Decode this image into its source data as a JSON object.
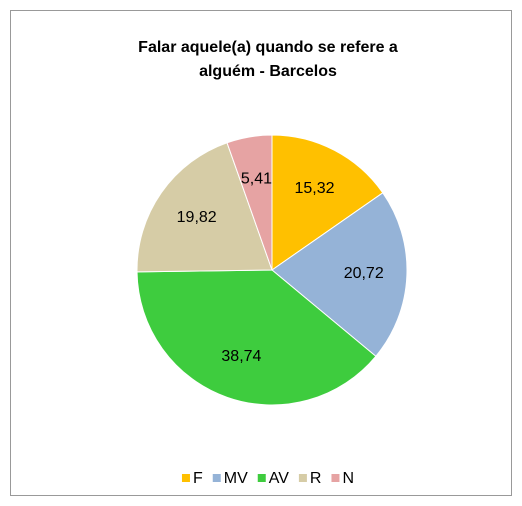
{
  "chart_data": {
    "type": "pie",
    "title": "Falar aquele(a) quando se refere a alguém - Barcelos",
    "categories": [
      "F",
      "MV",
      "AV",
      "R",
      "N"
    ],
    "values": [
      15.32,
      20.72,
      38.74,
      19.82,
      5.41
    ],
    "value_labels": [
      "15,32",
      "20,72",
      "38,74",
      "19,82",
      "5,41"
    ],
    "colors": [
      "#FFC000",
      "#95B3D7",
      "#3ECC3E",
      "#D6CCA6",
      "#E6A3A3"
    ],
    "legend": "bottom"
  }
}
